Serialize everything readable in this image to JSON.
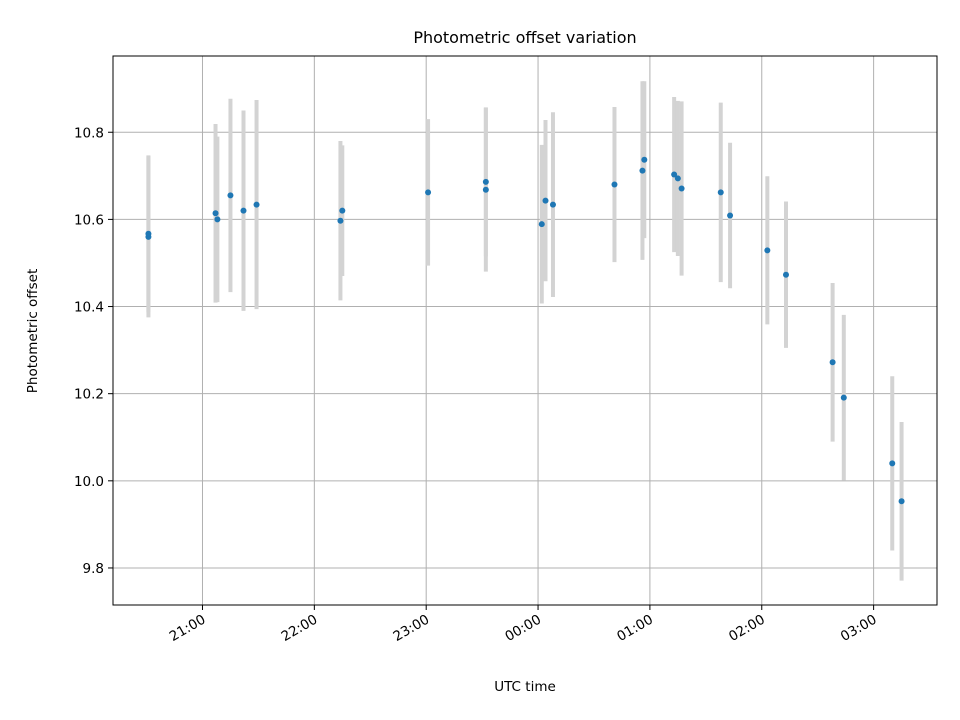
{
  "chart_data": {
    "type": "scatter",
    "title": "Photometric offset variation",
    "xlabel": "UTC time",
    "ylabel": "Photometric offset",
    "x_ticks": [
      "21:00",
      "22:00",
      "23:00",
      "00:00",
      "01:00",
      "02:00",
      "03:00"
    ],
    "y_ticks": [
      "9.8",
      "10.0",
      "10.2",
      "10.4",
      "10.6",
      "10.8"
    ],
    "ylim": [
      9.715,
      10.975
    ],
    "xlim": [
      "20:12",
      "03:34"
    ],
    "grid": true,
    "colors": {
      "point": "#1f77b4",
      "errorbar": "#d3d3d3",
      "grid": "#b0b0b0"
    },
    "series": [
      {
        "points": [
          {
            "t": "20:31",
            "y": 10.56,
            "err": 0.185
          },
          {
            "t": "20:31",
            "y": 10.567,
            "err": 0.18
          },
          {
            "t": "21:07",
            "y": 10.614,
            "err": 0.205
          },
          {
            "t": "21:08",
            "y": 10.6,
            "err": 0.19
          },
          {
            "t": "21:15",
            "y": 10.655,
            "err": 0.222
          },
          {
            "t": "21:22",
            "y": 10.62,
            "err": 0.23
          },
          {
            "t": "21:29",
            "y": 10.634,
            "err": 0.24
          },
          {
            "t": "22:14",
            "y": 10.597,
            "err": 0.183
          },
          {
            "t": "22:15",
            "y": 10.62,
            "err": 0.15
          },
          {
            "t": "23:01",
            "y": 10.662,
            "err": 0.168
          },
          {
            "t": "23:32",
            "y": 10.686,
            "err": 0.171
          },
          {
            "t": "23:32",
            "y": 10.668,
            "err": 0.188
          },
          {
            "t": "00:02",
            "y": 10.589,
            "err": 0.182
          },
          {
            "t": "00:04",
            "y": 10.643,
            "err": 0.185
          },
          {
            "t": "00:08",
            "y": 10.634,
            "err": 0.212
          },
          {
            "t": "00:41",
            "y": 10.68,
            "err": 0.178
          },
          {
            "t": "00:56",
            "y": 10.712,
            "err": 0.205
          },
          {
            "t": "00:57",
            "y": 10.737,
            "err": 0.18
          },
          {
            "t": "01:13",
            "y": 10.703,
            "err": 0.178
          },
          {
            "t": "01:15",
            "y": 10.694,
            "err": 0.178
          },
          {
            "t": "01:17",
            "y": 10.671,
            "err": 0.2
          },
          {
            "t": "01:38",
            "y": 10.662,
            "err": 0.206
          },
          {
            "t": "01:43",
            "y": 10.609,
            "err": 0.167
          },
          {
            "t": "02:03",
            "y": 10.529,
            "err": 0.17
          },
          {
            "t": "02:13",
            "y": 10.473,
            "err": 0.168
          },
          {
            "t": "02:38",
            "y": 10.272,
            "err": 0.182
          },
          {
            "t": "02:44",
            "y": 10.191,
            "err": 0.19
          },
          {
            "t": "03:10",
            "y": 10.04,
            "err": 0.2
          },
          {
            "t": "03:15",
            "y": 9.953,
            "err": 0.182
          }
        ]
      }
    ]
  }
}
